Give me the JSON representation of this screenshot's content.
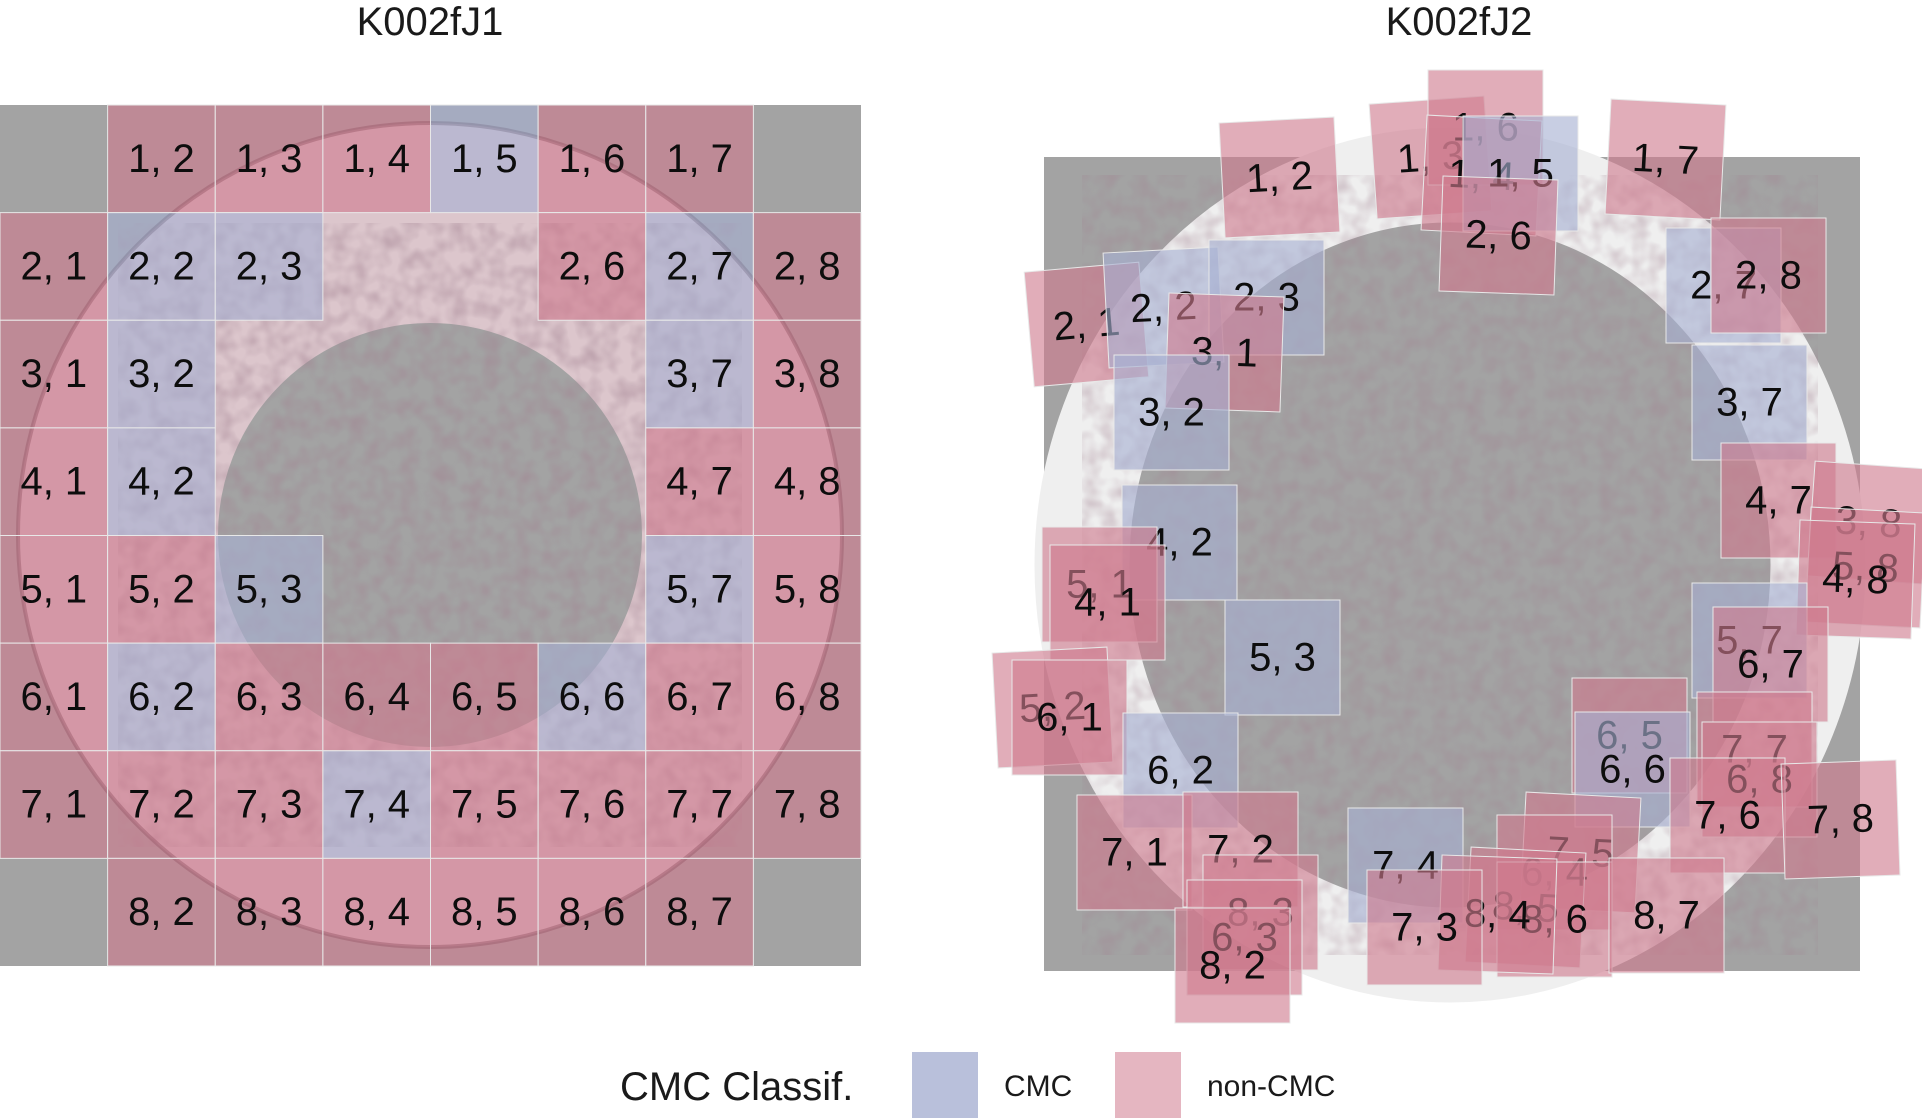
{
  "colors": {
    "CMC": "#a7b0d2",
    "non-CMC": "#cf7a8e",
    "background": "#a3a3a3",
    "ring": "#d9c4ca",
    "ring_dark": "#5a3a46"
  },
  "legend": {
    "title": "CMC Classif.",
    "items": [
      {
        "label": "CMC",
        "class": "CMC"
      },
      {
        "label": "non-CMC",
        "class": "non-CMC"
      }
    ]
  },
  "panels": [
    {
      "title": "K002fJ1",
      "cells": [
        {
          "label": "1, 2",
          "r": 1,
          "c": 2,
          "class": "non-CMC"
        },
        {
          "label": "1, 3",
          "r": 1,
          "c": 3,
          "class": "non-CMC"
        },
        {
          "label": "1, 4",
          "r": 1,
          "c": 4,
          "class": "non-CMC"
        },
        {
          "label": "1, 5",
          "r": 1,
          "c": 5,
          "class": "CMC"
        },
        {
          "label": "1, 6",
          "r": 1,
          "c": 6,
          "class": "non-CMC"
        },
        {
          "label": "1, 7",
          "r": 1,
          "c": 7,
          "class": "non-CMC"
        },
        {
          "label": "2, 1",
          "r": 2,
          "c": 1,
          "class": "non-CMC"
        },
        {
          "label": "2, 2",
          "r": 2,
          "c": 2,
          "class": "CMC"
        },
        {
          "label": "2, 3",
          "r": 2,
          "c": 3,
          "class": "CMC"
        },
        {
          "label": "2, 6",
          "r": 2,
          "c": 6,
          "class": "non-CMC"
        },
        {
          "label": "2, 7",
          "r": 2,
          "c": 7,
          "class": "CMC"
        },
        {
          "label": "2, 8",
          "r": 2,
          "c": 8,
          "class": "non-CMC"
        },
        {
          "label": "3, 1",
          "r": 3,
          "c": 1,
          "class": "non-CMC"
        },
        {
          "label": "3, 2",
          "r": 3,
          "c": 2,
          "class": "CMC"
        },
        {
          "label": "3, 7",
          "r": 3,
          "c": 7,
          "class": "CMC"
        },
        {
          "label": "3, 8",
          "r": 3,
          "c": 8,
          "class": "non-CMC"
        },
        {
          "label": "4, 1",
          "r": 4,
          "c": 1,
          "class": "non-CMC"
        },
        {
          "label": "4, 2",
          "r": 4,
          "c": 2,
          "class": "CMC"
        },
        {
          "label": "4, 7",
          "r": 4,
          "c": 7,
          "class": "non-CMC"
        },
        {
          "label": "4, 8",
          "r": 4,
          "c": 8,
          "class": "non-CMC"
        },
        {
          "label": "5, 1",
          "r": 5,
          "c": 1,
          "class": "non-CMC"
        },
        {
          "label": "5, 2",
          "r": 5,
          "c": 2,
          "class": "non-CMC"
        },
        {
          "label": "5, 3",
          "r": 5,
          "c": 3,
          "class": "CMC"
        },
        {
          "label": "5, 7",
          "r": 5,
          "c": 7,
          "class": "CMC"
        },
        {
          "label": "5, 8",
          "r": 5,
          "c": 8,
          "class": "non-CMC"
        },
        {
          "label": "6, 1",
          "r": 6,
          "c": 1,
          "class": "non-CMC"
        },
        {
          "label": "6, 2",
          "r": 6,
          "c": 2,
          "class": "CMC"
        },
        {
          "label": "6, 3",
          "r": 6,
          "c": 3,
          "class": "non-CMC"
        },
        {
          "label": "6, 4",
          "r": 6,
          "c": 4,
          "class": "non-CMC"
        },
        {
          "label": "6, 5",
          "r": 6,
          "c": 5,
          "class": "non-CMC"
        },
        {
          "label": "6, 6",
          "r": 6,
          "c": 6,
          "class": "CMC"
        },
        {
          "label": "6, 7",
          "r": 6,
          "c": 7,
          "class": "non-CMC"
        },
        {
          "label": "6, 8",
          "r": 6,
          "c": 8,
          "class": "non-CMC"
        },
        {
          "label": "7, 1",
          "r": 7,
          "c": 1,
          "class": "non-CMC"
        },
        {
          "label": "7, 2",
          "r": 7,
          "c": 2,
          "class": "non-CMC"
        },
        {
          "label": "7, 3",
          "r": 7,
          "c": 3,
          "class": "non-CMC"
        },
        {
          "label": "7, 4",
          "r": 7,
          "c": 4,
          "class": "CMC"
        },
        {
          "label": "7, 5",
          "r": 7,
          "c": 5,
          "class": "non-CMC"
        },
        {
          "label": "7, 6",
          "r": 7,
          "c": 6,
          "class": "non-CMC"
        },
        {
          "label": "7, 7",
          "r": 7,
          "c": 7,
          "class": "non-CMC"
        },
        {
          "label": "7, 8",
          "r": 7,
          "c": 8,
          "class": "non-CMC"
        },
        {
          "label": "8, 2",
          "r": 8,
          "c": 2,
          "class": "non-CMC"
        },
        {
          "label": "8, 3",
          "r": 8,
          "c": 3,
          "class": "non-CMC"
        },
        {
          "label": "8, 4",
          "r": 8,
          "c": 4,
          "class": "non-CMC"
        },
        {
          "label": "8, 5",
          "r": 8,
          "c": 5,
          "class": "non-CMC"
        },
        {
          "label": "8, 6",
          "r": 8,
          "c": 6,
          "class": "non-CMC"
        },
        {
          "label": "8, 7",
          "r": 8,
          "c": 7,
          "class": "non-CMC"
        }
      ]
    },
    {
      "title": "K002fJ2",
      "cells": [
        {
          "label": "1, 2",
          "class": "non-CMC"
        },
        {
          "label": "1, 3",
          "class": "non-CMC"
        },
        {
          "label": "1, 6",
          "class": "non-CMC"
        },
        {
          "label": "1, 4",
          "class": "non-CMC"
        },
        {
          "label": "1, 5",
          "class": "CMC"
        },
        {
          "label": "1, 7",
          "class": "non-CMC"
        },
        {
          "label": "2, 6",
          "class": "non-CMC"
        },
        {
          "label": "2, 1",
          "class": "non-CMC"
        },
        {
          "label": "2, 2",
          "class": "CMC"
        },
        {
          "label": "2, 3",
          "class": "CMC"
        },
        {
          "label": "3, 1",
          "class": "non-CMC"
        },
        {
          "label": "2, 7",
          "class": "CMC"
        },
        {
          "label": "2, 8",
          "class": "non-CMC"
        },
        {
          "label": "3, 2",
          "class": "CMC"
        },
        {
          "label": "3, 7",
          "class": "CMC"
        },
        {
          "label": "4, 2",
          "class": "CMC"
        },
        {
          "label": "4, 7",
          "class": "non-CMC"
        },
        {
          "label": "3, 8",
          "class": "non-CMC"
        },
        {
          "label": "5, 8",
          "class": "non-CMC"
        },
        {
          "label": "4, 8",
          "class": "non-CMC"
        },
        {
          "label": "5, 1",
          "class": "non-CMC"
        },
        {
          "label": "4, 1",
          "class": "non-CMC"
        },
        {
          "label": "5, 3",
          "class": "CMC"
        },
        {
          "label": "5, 7",
          "class": "CMC"
        },
        {
          "label": "6, 7",
          "class": "non-CMC"
        },
        {
          "label": "5, 2",
          "class": "non-CMC"
        },
        {
          "label": "6, 1",
          "class": "non-CMC"
        },
        {
          "label": "6, 2",
          "class": "CMC"
        },
        {
          "label": "6, 5",
          "class": "non-CMC"
        },
        {
          "label": "6, 6",
          "class": "CMC"
        },
        {
          "label": "7, 7",
          "class": "non-CMC"
        },
        {
          "label": "6, 8",
          "class": "non-CMC"
        },
        {
          "label": "7, 6",
          "class": "non-CMC"
        },
        {
          "label": "7, 8",
          "class": "non-CMC"
        },
        {
          "label": "7, 1",
          "class": "non-CMC"
        },
        {
          "label": "7, 2",
          "class": "non-CMC"
        },
        {
          "label": "7, 4",
          "class": "CMC"
        },
        {
          "label": "7, 5",
          "class": "non-CMC"
        },
        {
          "label": "6, 4",
          "class": "non-CMC"
        },
        {
          "label": "8, 5",
          "class": "non-CMC"
        },
        {
          "label": "8, 6",
          "class": "non-CMC"
        },
        {
          "label": "8, 7",
          "class": "non-CMC"
        },
        {
          "label": "8, 4",
          "class": "non-CMC"
        },
        {
          "label": "7, 3",
          "class": "non-CMC"
        },
        {
          "label": "8, 3",
          "class": "non-CMC"
        },
        {
          "label": "6, 3",
          "class": "non-CMC"
        },
        {
          "label": "8, 2",
          "class": "non-CMC"
        }
      ]
    }
  ]
}
